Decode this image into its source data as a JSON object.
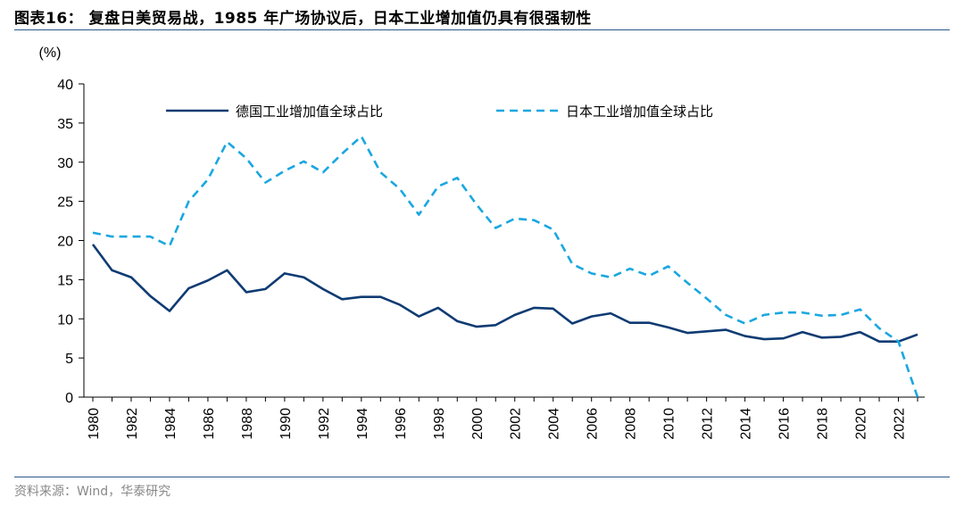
{
  "header": {
    "title": "图表16： 复盘日美贸易战，1985 年广场协议后，日本工业增加值仍具有很强韧性"
  },
  "footer": {
    "source": "资料来源：Wind，华泰研究"
  },
  "chart_data": {
    "type": "line",
    "ylabel": "(%)",
    "ylim": [
      0,
      40
    ],
    "yticks": [
      0,
      5,
      10,
      15,
      20,
      25,
      30,
      35,
      40
    ],
    "xlim": [
      1980,
      2023
    ],
    "xticks": [
      1980,
      1982,
      1984,
      1986,
      1988,
      1990,
      1992,
      1994,
      1996,
      1998,
      2000,
      2002,
      2004,
      2006,
      2008,
      2010,
      2012,
      2014,
      2016,
      2018,
      2020,
      2022
    ],
    "legend_position": "top",
    "grid": false,
    "x": [
      1980,
      1981,
      1982,
      1983,
      1984,
      1985,
      1986,
      1987,
      1988,
      1989,
      1990,
      1991,
      1992,
      1993,
      1994,
      1995,
      1996,
      1997,
      1998,
      1999,
      2000,
      2001,
      2002,
      2003,
      2004,
      2005,
      2006,
      2007,
      2008,
      2009,
      2010,
      2011,
      2012,
      2013,
      2014,
      2015,
      2016,
      2017,
      2018,
      2019,
      2020,
      2021,
      2022,
      2023
    ],
    "series": [
      {
        "name": "德国工业增加值全球占比",
        "style": "solid",
        "color": "#0f3b73",
        "values": [
          19.5,
          16.2,
          15.3,
          12.9,
          11.0,
          13.9,
          14.9,
          16.2,
          13.4,
          13.8,
          15.8,
          15.3,
          13.8,
          12.5,
          12.8,
          12.8,
          11.8,
          10.3,
          11.4,
          9.7,
          9.0,
          9.2,
          10.5,
          11.4,
          11.3,
          9.4,
          10.3,
          10.7,
          9.5,
          9.5,
          8.9,
          8.2,
          8.4,
          8.6,
          7.8,
          7.4,
          7.5,
          8.3,
          7.6,
          7.7,
          8.3,
          7.1,
          7.1,
          8.0
        ]
      },
      {
        "name": "日本工业增加值全球占比",
        "style": "dashed",
        "color": "#1aa7e0",
        "values": [
          21.0,
          20.5,
          20.5,
          20.5,
          19.3,
          25.0,
          27.8,
          32.6,
          30.5,
          27.4,
          28.9,
          30.1,
          28.7,
          31.1,
          33.3,
          28.7,
          26.6,
          23.3,
          26.9,
          28.0,
          24.6,
          21.6,
          22.8,
          22.6,
          21.4,
          17.0,
          15.8,
          15.3,
          16.4,
          15.5,
          16.7,
          14.6,
          12.6,
          10.5,
          9.4,
          10.5,
          10.8,
          10.8,
          10.4,
          10.5,
          11.2,
          8.8,
          7.1,
          0.0
        ]
      }
    ]
  }
}
